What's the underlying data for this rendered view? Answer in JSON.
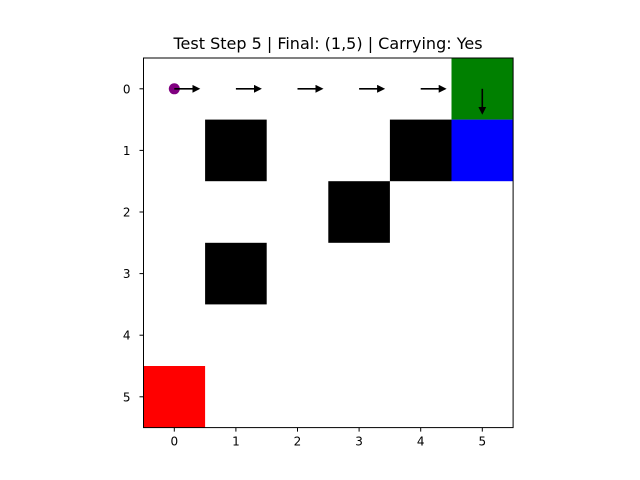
{
  "title": "Test Step 5 | Final: (1,5) | Carrying: Yes",
  "grid": {
    "rows": 6,
    "cols": 6,
    "background_color": "#ffffff",
    "x_ticks": [
      "0",
      "1",
      "2",
      "3",
      "4",
      "5"
    ],
    "y_ticks": [
      "0",
      "1",
      "2",
      "3",
      "4",
      "5"
    ],
    "obstacle_color": "#000000",
    "obstacles": [
      {
        "row": 1,
        "col": 1
      },
      {
        "row": 1,
        "col": 4
      },
      {
        "row": 2,
        "col": 3
      },
      {
        "row": 3,
        "col": 1
      }
    ],
    "special_cells": [
      {
        "name": "green-cell",
        "row": 0,
        "col": 5,
        "color": "#008000"
      },
      {
        "name": "blue-cell",
        "row": 1,
        "col": 5,
        "color": "#0000ff"
      },
      {
        "name": "red-cell",
        "row": 5,
        "col": 0,
        "color": "#ff0000"
      }
    ],
    "start": {
      "row": 0,
      "col": 0,
      "color": "#800080"
    },
    "path_arrows": [
      {
        "row": 0,
        "col": 0,
        "direction": "right"
      },
      {
        "row": 0,
        "col": 1,
        "direction": "right"
      },
      {
        "row": 0,
        "col": 2,
        "direction": "right"
      },
      {
        "row": 0,
        "col": 3,
        "direction": "right"
      },
      {
        "row": 0,
        "col": 4,
        "direction": "right"
      },
      {
        "row": 0,
        "col": 5,
        "direction": "down"
      }
    ]
  }
}
